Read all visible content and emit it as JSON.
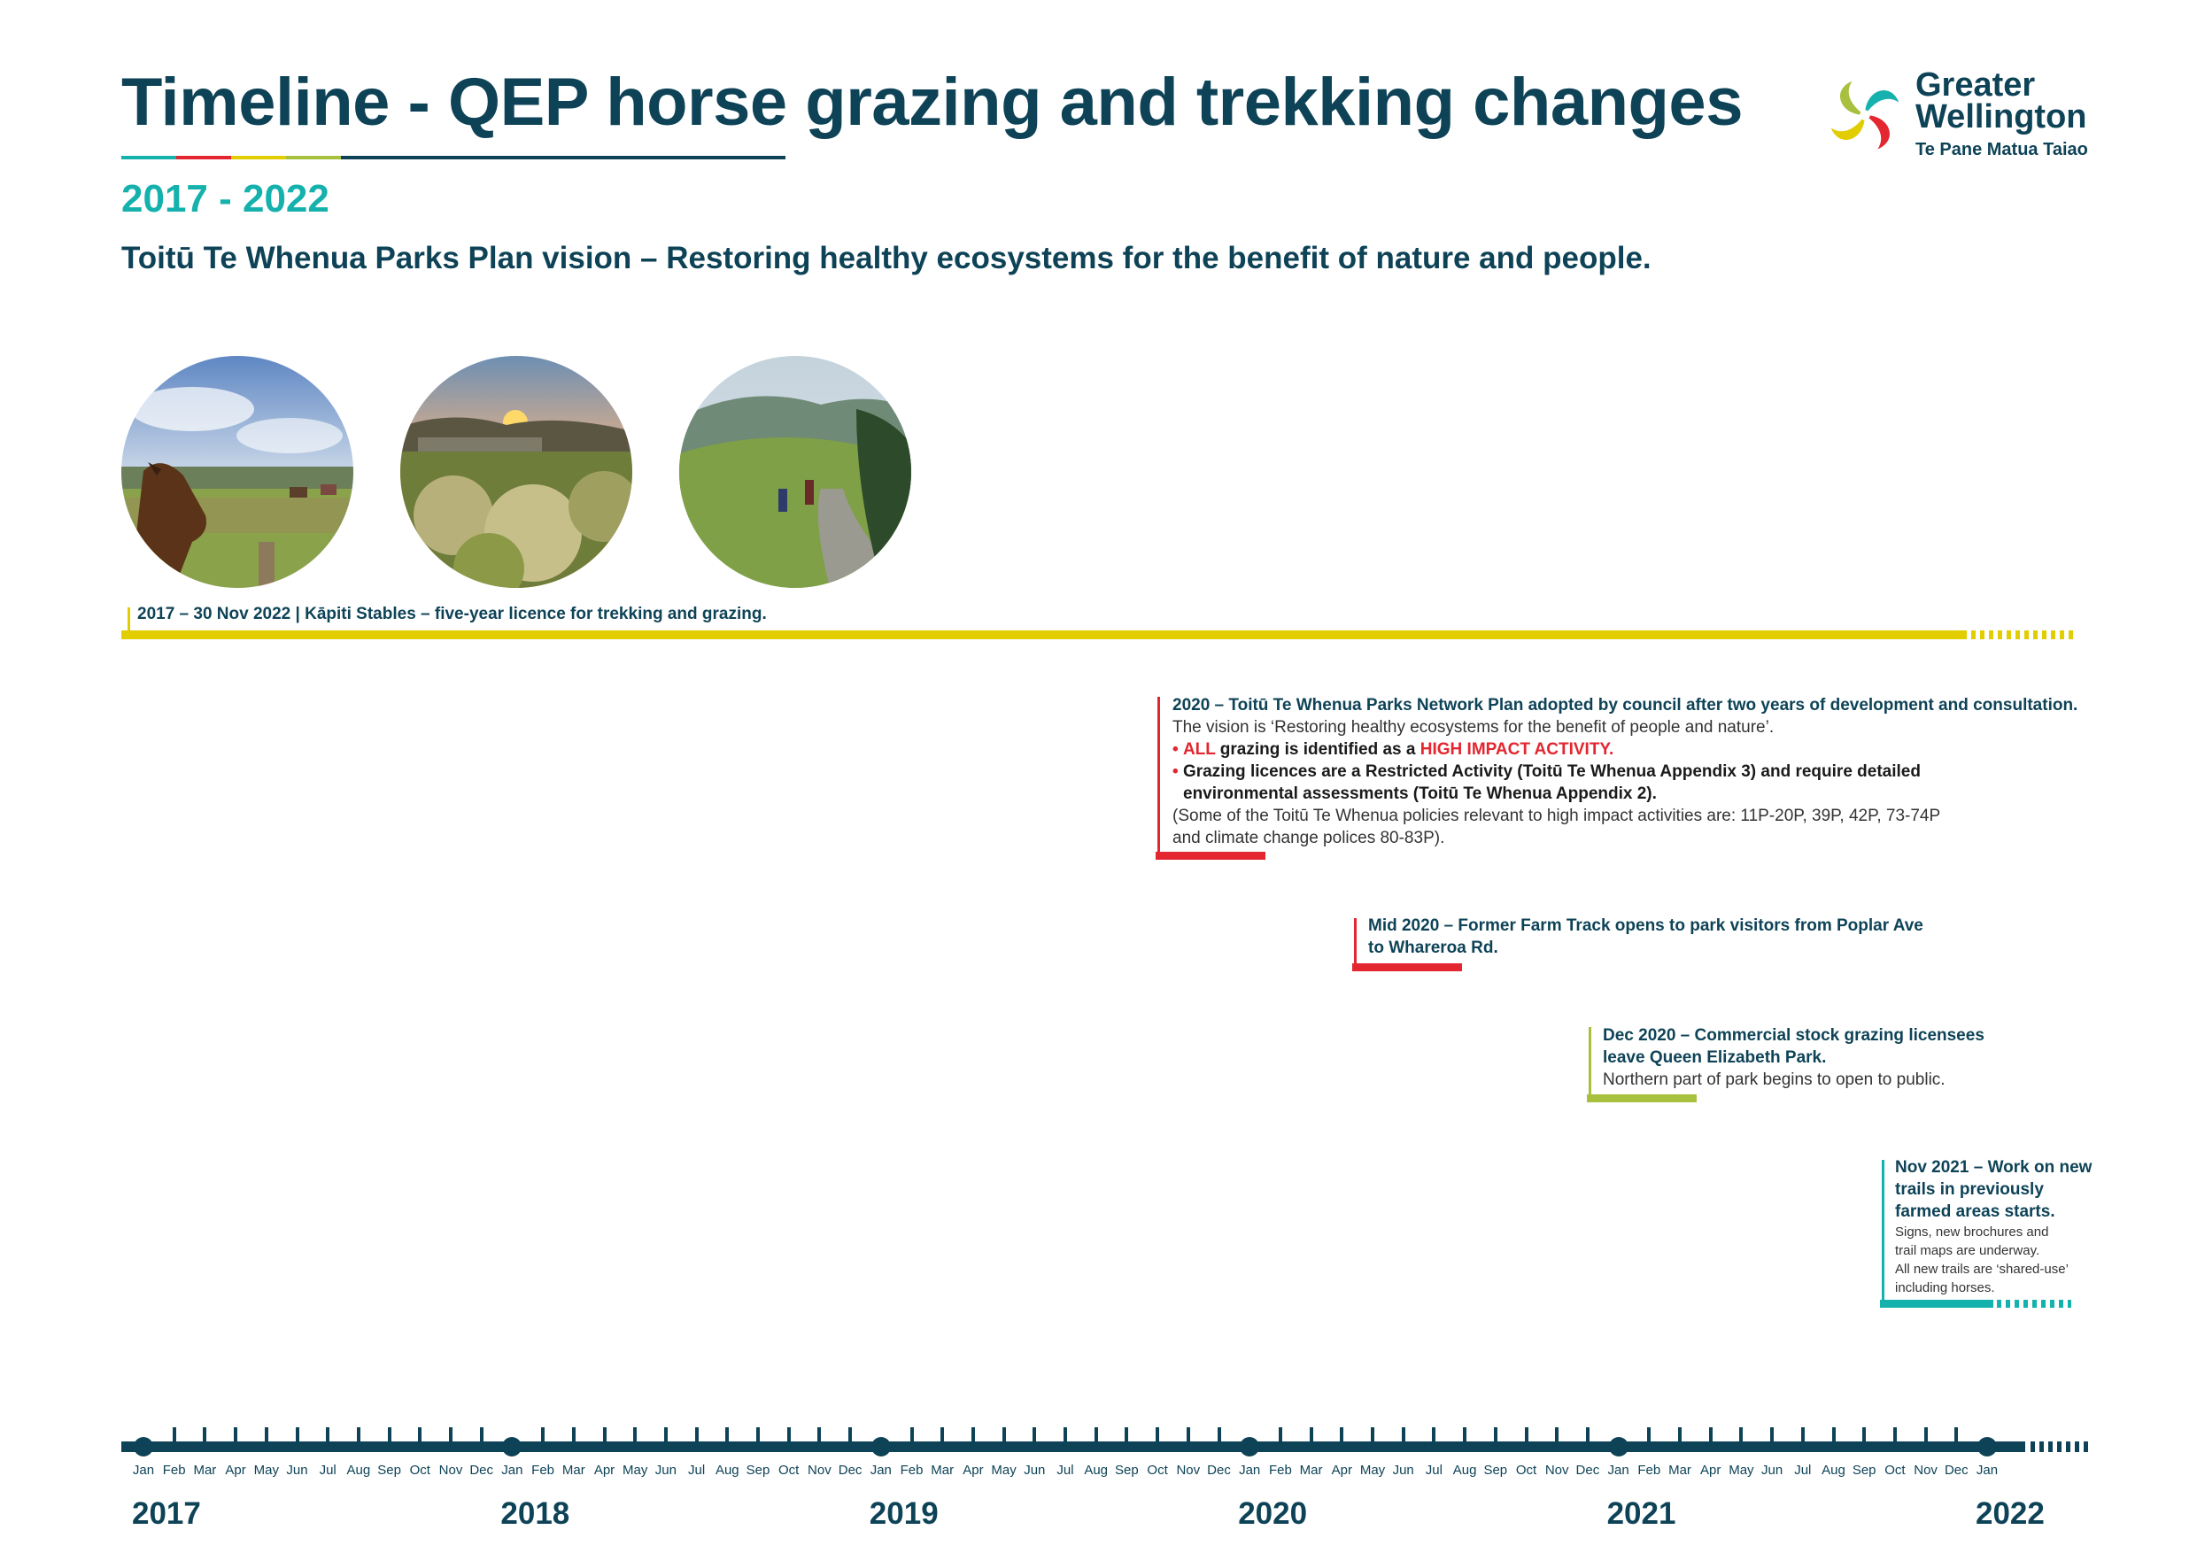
{
  "header": {
    "title": "Timeline - QEP horse grazing and trekking changes",
    "years": "2017 - 2022",
    "vision": "Toitū Te Whenua Parks Plan vision – Restoring healthy ecosystems for the benefit of nature and people."
  },
  "logo": {
    "line1": "Greater",
    "line2": "Wellington",
    "sub": "Te Pane Matua Taiao"
  },
  "colors": {
    "navy": "#0e4357",
    "teal": "#14b1ad",
    "yellow": "#e1cd00",
    "red": "#e3262f",
    "green": "#a7c03d"
  },
  "photos": [
    {
      "subject": "horses-in-paddock"
    },
    {
      "subject": "sunset-over-wetland-plants"
    },
    {
      "subject": "people-walking-on-track"
    }
  ],
  "licence_bar": {
    "label": "2017 – 30 Nov 2022 | Kāpiti Stables – five-year licence for trekking and grazing."
  },
  "events": {
    "plan": {
      "heading": "2020 – Toitū Te Whenua Parks Network Plan adopted by council after two years of development and consultation.",
      "line1": "The vision is ‘Restoring healthy ecosystems for the benefit of people and nature’.",
      "bullet1_all": "ALL",
      "bullet1_mid": " grazing is identified as a ",
      "bullet1_hi": "HIGH IMPACT ACTIVITY.",
      "bullet2_a": "Grazing licences are a Restricted Activity (Toitū Te Whenua Appendix 3) and require detailed",
      "bullet2_b": "environmental assessments (Toitū Te Whenua Appendix 2).",
      "note_a": "(Some of the Toitū Te Whenua policies relevant to high impact activities are: 11P-20P, 39P, 42P, 73-74P",
      "note_b": "and climate change polices 80-83P)."
    },
    "farm_track": {
      "line1": "Mid 2020 – Former Farm Track opens to park visitors from Poplar Ave",
      "line2": "to Whareroa Rd."
    },
    "grazing": {
      "line1": "Dec 2020 – Commercial stock grazing licensees",
      "line2": "leave Queen Elizabeth Park.",
      "line3": "Northern part of park begins to open to public."
    },
    "trails": {
      "line1": "Nov 2021 – Work on new",
      "line2": "trails in previously",
      "line3": "farmed areas starts.",
      "small1": "Signs, new brochures and",
      "small2": "trail maps are underway.",
      "small3": "All new trails are ‘shared-use’",
      "small4": "including horses."
    }
  },
  "axis": {
    "months": [
      "Jan",
      "Feb",
      "Mar",
      "Apr",
      "May",
      "Jun",
      "Jul",
      "Aug",
      "Sep",
      "Oct",
      "Nov",
      "Dec"
    ],
    "years": [
      "2017",
      "2018",
      "2019",
      "2020",
      "2021",
      "2022"
    ],
    "final_month": "Jan"
  }
}
